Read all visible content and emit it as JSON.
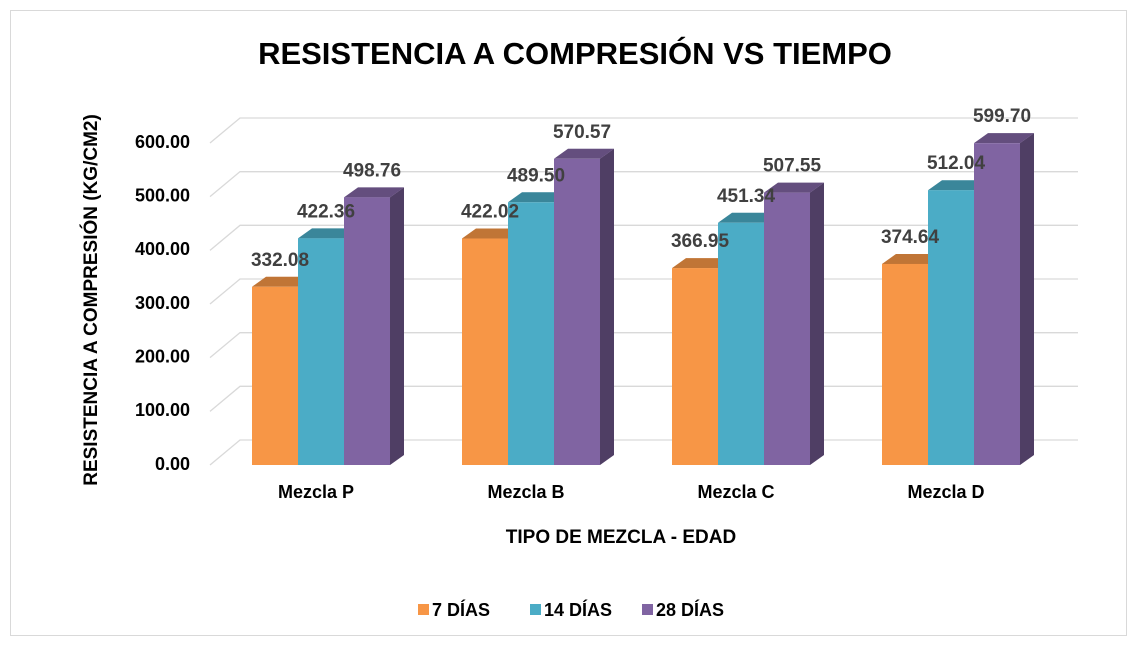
{
  "chart_data": {
    "type": "bar3d",
    "title": "RESISTENCIA A COMPRESIÓN VS TIEMPO",
    "x_label": "TIPO DE MEZCLA - EDAD",
    "y_label": "RESISTENCIA A COMPRESIÓN (KG/CM2)",
    "categories": [
      "Mezcla P",
      "Mezcla B",
      "Mezcla C",
      "Mezcla D"
    ],
    "series": [
      {
        "name": "7 DÍAS",
        "color": "#f79646",
        "values": [
          332.08,
          422.02,
          366.95,
          374.64
        ],
        "value_labels": [
          "332.08",
          "422.02",
          "366.95",
          "374.64"
        ]
      },
      {
        "name": "14 DÍAS",
        "color": "#4bacc6",
        "values": [
          422.36,
          489.5,
          451.34,
          512.04
        ],
        "value_labels": [
          "422.36",
          "489.50",
          "451.34",
          "512.04"
        ]
      },
      {
        "name": "28 DÍAS",
        "color": "#8064a2",
        "values": [
          498.76,
          570.57,
          507.55,
          599.7
        ],
        "value_labels": [
          "498.76",
          "570.57",
          "507.55",
          "599.70"
        ]
      }
    ],
    "ylim": [
      0,
      600
    ],
    "yticks": [
      {
        "value": 0,
        "label": "0.00"
      },
      {
        "value": 100,
        "label": "100.00"
      },
      {
        "value": 200,
        "label": "200.00"
      },
      {
        "value": 300,
        "label": "300.00"
      },
      {
        "value": 400,
        "label": "400.00"
      },
      {
        "value": 500,
        "label": "500.00"
      },
      {
        "value": 600,
        "label": "600.00"
      }
    ],
    "grid": true,
    "legend": "bottom"
  }
}
